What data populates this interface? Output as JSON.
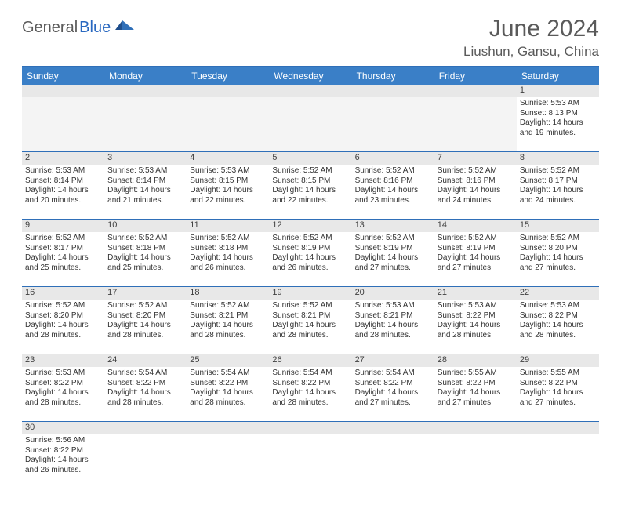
{
  "brand": {
    "text1": "General",
    "text2": "Blue"
  },
  "title": "June 2024",
  "location": "Liushun, Gansu, China",
  "colors": {
    "accent": "#3a7fc7",
    "rule": "#2f6fb8",
    "logo_gray": "#5a5a5a",
    "logo_blue": "#2968c0",
    "daynum_bg": "#e8e8e8"
  },
  "daysOfWeek": [
    "Sunday",
    "Monday",
    "Tuesday",
    "Wednesday",
    "Thursday",
    "Friday",
    "Saturday"
  ],
  "firstWeekday": 6,
  "daysInMonth": 30,
  "cells": {
    "1": {
      "sunrise": "5:53 AM",
      "sunset": "8:13 PM",
      "daylight": "14 hours and 19 minutes."
    },
    "2": {
      "sunrise": "5:53 AM",
      "sunset": "8:14 PM",
      "daylight": "14 hours and 20 minutes."
    },
    "3": {
      "sunrise": "5:53 AM",
      "sunset": "8:14 PM",
      "daylight": "14 hours and 21 minutes."
    },
    "4": {
      "sunrise": "5:53 AM",
      "sunset": "8:15 PM",
      "daylight": "14 hours and 22 minutes."
    },
    "5": {
      "sunrise": "5:52 AM",
      "sunset": "8:15 PM",
      "daylight": "14 hours and 22 minutes."
    },
    "6": {
      "sunrise": "5:52 AM",
      "sunset": "8:16 PM",
      "daylight": "14 hours and 23 minutes."
    },
    "7": {
      "sunrise": "5:52 AM",
      "sunset": "8:16 PM",
      "daylight": "14 hours and 24 minutes."
    },
    "8": {
      "sunrise": "5:52 AM",
      "sunset": "8:17 PM",
      "daylight": "14 hours and 24 minutes."
    },
    "9": {
      "sunrise": "5:52 AM",
      "sunset": "8:17 PM",
      "daylight": "14 hours and 25 minutes."
    },
    "10": {
      "sunrise": "5:52 AM",
      "sunset": "8:18 PM",
      "daylight": "14 hours and 25 minutes."
    },
    "11": {
      "sunrise": "5:52 AM",
      "sunset": "8:18 PM",
      "daylight": "14 hours and 26 minutes."
    },
    "12": {
      "sunrise": "5:52 AM",
      "sunset": "8:19 PM",
      "daylight": "14 hours and 26 minutes."
    },
    "13": {
      "sunrise": "5:52 AM",
      "sunset": "8:19 PM",
      "daylight": "14 hours and 27 minutes."
    },
    "14": {
      "sunrise": "5:52 AM",
      "sunset": "8:19 PM",
      "daylight": "14 hours and 27 minutes."
    },
    "15": {
      "sunrise": "5:52 AM",
      "sunset": "8:20 PM",
      "daylight": "14 hours and 27 minutes."
    },
    "16": {
      "sunrise": "5:52 AM",
      "sunset": "8:20 PM",
      "daylight": "14 hours and 28 minutes."
    },
    "17": {
      "sunrise": "5:52 AM",
      "sunset": "8:20 PM",
      "daylight": "14 hours and 28 minutes."
    },
    "18": {
      "sunrise": "5:52 AM",
      "sunset": "8:21 PM",
      "daylight": "14 hours and 28 minutes."
    },
    "19": {
      "sunrise": "5:52 AM",
      "sunset": "8:21 PM",
      "daylight": "14 hours and 28 minutes."
    },
    "20": {
      "sunrise": "5:53 AM",
      "sunset": "8:21 PM",
      "daylight": "14 hours and 28 minutes."
    },
    "21": {
      "sunrise": "5:53 AM",
      "sunset": "8:22 PM",
      "daylight": "14 hours and 28 minutes."
    },
    "22": {
      "sunrise": "5:53 AM",
      "sunset": "8:22 PM",
      "daylight": "14 hours and 28 minutes."
    },
    "23": {
      "sunrise": "5:53 AM",
      "sunset": "8:22 PM",
      "daylight": "14 hours and 28 minutes."
    },
    "24": {
      "sunrise": "5:54 AM",
      "sunset": "8:22 PM",
      "daylight": "14 hours and 28 minutes."
    },
    "25": {
      "sunrise": "5:54 AM",
      "sunset": "8:22 PM",
      "daylight": "14 hours and 28 minutes."
    },
    "26": {
      "sunrise": "5:54 AM",
      "sunset": "8:22 PM",
      "daylight": "14 hours and 28 minutes."
    },
    "27": {
      "sunrise": "5:54 AM",
      "sunset": "8:22 PM",
      "daylight": "14 hours and 27 minutes."
    },
    "28": {
      "sunrise": "5:55 AM",
      "sunset": "8:22 PM",
      "daylight": "14 hours and 27 minutes."
    },
    "29": {
      "sunrise": "5:55 AM",
      "sunset": "8:22 PM",
      "daylight": "14 hours and 27 minutes."
    },
    "30": {
      "sunrise": "5:56 AM",
      "sunset": "8:22 PM",
      "daylight": "14 hours and 26 minutes."
    }
  },
  "labels": {
    "sunrise": "Sunrise:",
    "sunset": "Sunset:",
    "daylight": "Daylight:"
  }
}
